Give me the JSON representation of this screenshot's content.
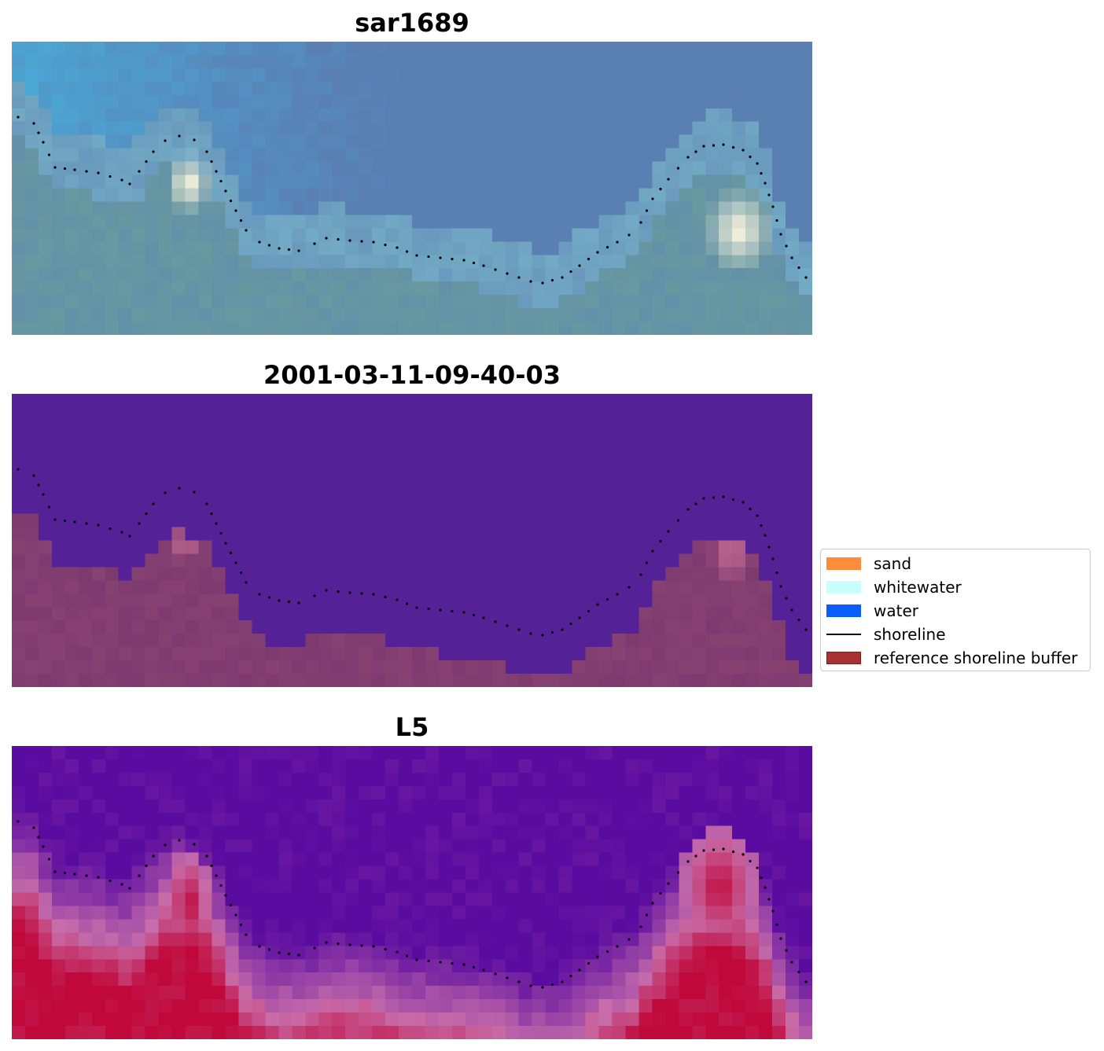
{
  "panels": [
    {
      "title": "sar1689",
      "kind": "rgb"
    },
    {
      "title": "2001-03-11-09-40-03",
      "kind": "classification"
    },
    {
      "title": "L5",
      "kind": "index"
    }
  ],
  "legend": {
    "items": [
      {
        "label": "sand",
        "color": "#ff8c3a",
        "kind": "patch"
      },
      {
        "label": "whitewater",
        "color": "#c8fffe",
        "kind": "patch"
      },
      {
        "label": "water",
        "color": "#0a5cff",
        "kind": "patch"
      },
      {
        "label": "shoreline",
        "color": "#000000",
        "kind": "line"
      },
      {
        "label": "reference shoreline buffer",
        "color": "#a83232",
        "kind": "patch"
      }
    ]
  },
  "colors": {
    "water_class": "#542296",
    "buffer_tint": "#7e3a6f",
    "rgb_sky": "#4aa9d6",
    "rgb_deep": "#5a7fb3",
    "rgb_foam": "#fff8e0",
    "index_low": "#5a0ba0",
    "index_high": "#c0083a"
  }
}
